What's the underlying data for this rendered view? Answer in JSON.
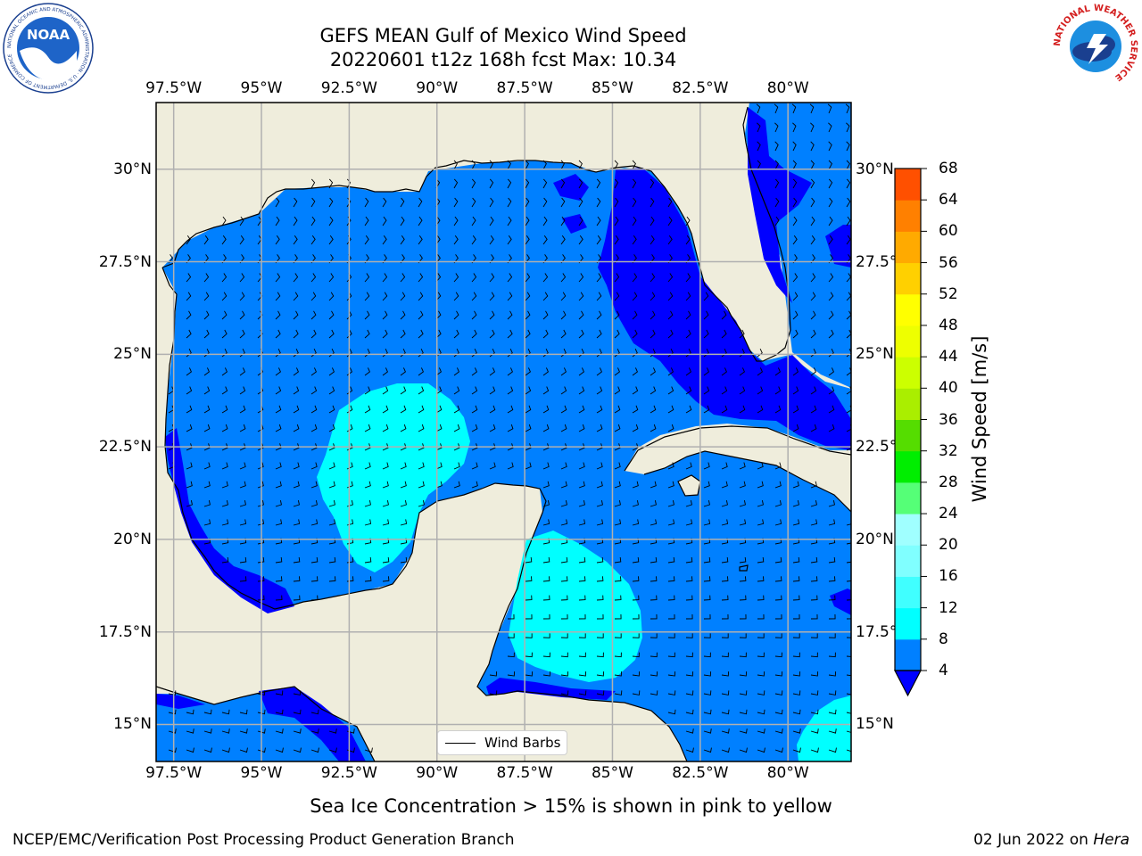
{
  "title": {
    "line1": "GEFS MEAN Gulf of Mexico Wind Speed",
    "line2": "20220601 t12z 168h fcst   Max: 10.34"
  },
  "axes": {
    "lon_labels": [
      "97.5°W",
      "95°W",
      "92.5°W",
      "90°W",
      "87.5°W",
      "85°W",
      "82.5°W",
      "80°W"
    ],
    "lat_labels": [
      "30°N",
      "27.5°N",
      "25°N",
      "22.5°N",
      "20°N",
      "17.5°N",
      "15°N"
    ],
    "lon_values": [
      -97.5,
      -95,
      -92.5,
      -90,
      -87.5,
      -85,
      -82.5,
      -80
    ],
    "lat_values": [
      30,
      27.5,
      25,
      22.5,
      20,
      17.5,
      15
    ],
    "extent": {
      "lon_min": -98,
      "lon_max": -78.2,
      "lat_min": 14,
      "lat_max": 31.8
    }
  },
  "legend": {
    "label": "Wind Barbs"
  },
  "colorbar": {
    "label": "Wind Speed [m/s]",
    "ticks": [
      "68",
      "64",
      "60",
      "56",
      "52",
      "48",
      "44",
      "40",
      "36",
      "32",
      "28",
      "24",
      "20",
      "16",
      "12",
      "8",
      "4"
    ],
    "levels": [
      4,
      8,
      12,
      16,
      20,
      24,
      28,
      32,
      36,
      40,
      44,
      48,
      52,
      56,
      60,
      64,
      68
    ],
    "colors": [
      "#0080ff",
      "#00ffff",
      "#40ffff",
      "#80ffff",
      "#a0ffff",
      "#55ff77",
      "#00ee00",
      "#55dd00",
      "#aaee00",
      "#ccff00",
      "#eeff00",
      "#ffff00",
      "#ffd000",
      "#ffaa00",
      "#ff8000",
      "#ff5000",
      "#ff0000"
    ],
    "under_color": "#0000ff"
  },
  "caption": "Sea Ice Concentration > 15% is shown in pink to yellow",
  "footer": {
    "left": "NCEP/EMC/Verification Post Processing Product Generation Branch",
    "date": "02 Jun 2022 on ",
    "host": "Hera"
  },
  "logos": {
    "left_name": "noaa-logo",
    "left_text": "NOAA",
    "left_ring_text": "NATIONAL OCEANIC AND ATMOSPHERIC ADMINISTRATION · U.S. DEPARTMENT OF COMMERCE",
    "right_name": "nws-logo",
    "right_ring_text": "NATIONAL WEATHER SERVICE"
  },
  "colors": {
    "land": "#efeddc",
    "ocean_base": "#0080ff",
    "wind_calm": "#0000ff",
    "wind_8_12": "#00ffff",
    "grid": "#b0b0b0"
  },
  "chart_data": {
    "type": "map",
    "region": "Gulf of Mexico",
    "variable": "Wind Speed [m/s]",
    "max_value": 10.34,
    "dominant_speed_range_ms": [
      4,
      8
    ],
    "regions_below_4_ms": [
      "Florida west coast / eastern Gulf",
      "Straits of Florida",
      "Bay of Campeche coast",
      "Gulf of Honduras"
    ],
    "regions_8_to_12_ms": [
      "Central-western Gulf (about 22.5°N, 92°W)",
      "Yucatan Channel / NW Caribbean (about 18.5°N, 86°W)",
      "SE corner (about 15°N, 79°W)"
    ]
  }
}
